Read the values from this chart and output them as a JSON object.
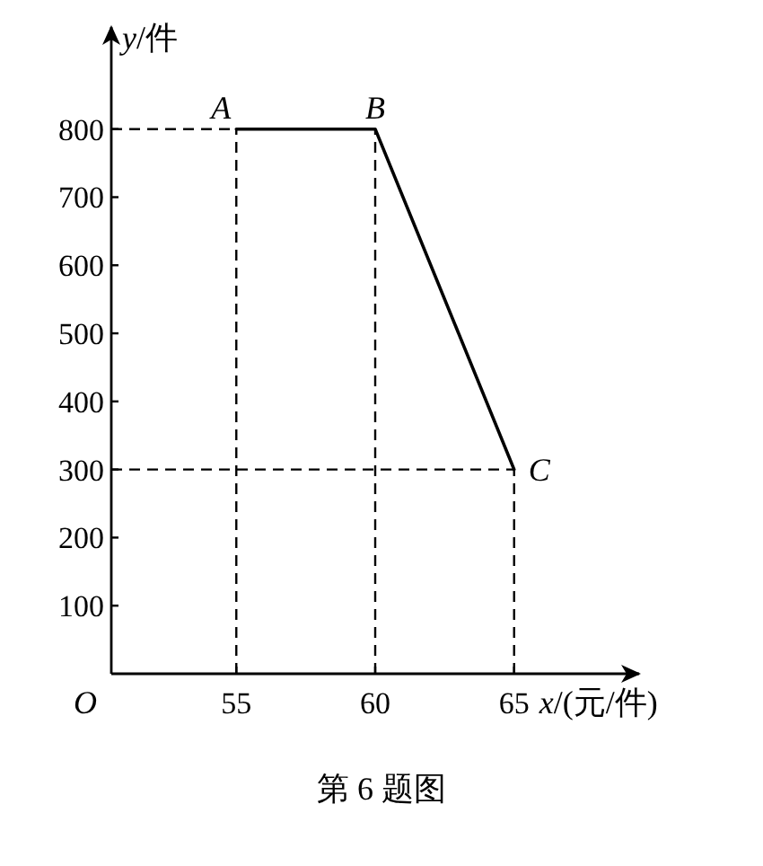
{
  "chart_data": {
    "type": "line",
    "xlabel": "*x*/(元/件)",
    "ylabel": "*y*/件",
    "x": [
      55,
      60,
      65
    ],
    "series": [
      {
        "color": "#000000",
        "values": [
          800,
          800,
          300
        ]
      }
    ],
    "xlim": [
      50.5,
      69.5
    ],
    "ylim": [
      0,
      950
    ],
    "xticks": [
      55,
      60,
      65
    ],
    "yticks": [
      100,
      200,
      300,
      400,
      500,
      600,
      700,
      800
    ],
    "ref_lines": [
      {
        "axis": "y",
        "value": 800,
        "line_style": "dashed"
      },
      {
        "axis": "y",
        "value": 300,
        "line_style": "dashed"
      },
      {
        "axis": "x",
        "value": 55,
        "line_style": "dashed"
      },
      {
        "axis": "x",
        "value": 60,
        "line_style": "dashed"
      },
      {
        "axis": "x",
        "value": 65,
        "line_style": "dashed"
      }
    ],
    "annotations": [
      {
        "text": "*A*",
        "x": 55,
        "y": 800
      },
      {
        "text": "*B*",
        "x": 60,
        "y": 800
      },
      {
        "text": "*C*",
        "x": 65,
        "y": 300
      },
      "O",
      "第 6 题图"
    ],
    "grid": false,
    "marker": "none",
    "line_style": "solid"
  }
}
